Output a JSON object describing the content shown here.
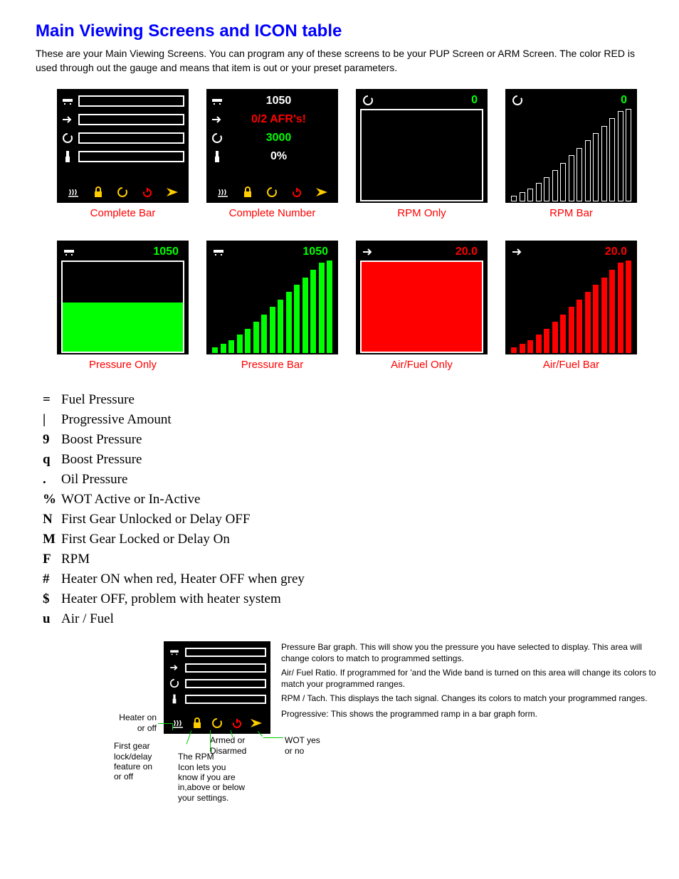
{
  "colors": {
    "title": "#0000ff",
    "caption": "#ff0000",
    "bg": "#000000",
    "white": "#ffffff",
    "green": "#00ff00",
    "red": "#ff0000",
    "yellow": "#ffcc00",
    "pointer": "#00cc00"
  },
  "title": "Main Viewing Screens and ICON table",
  "intro": "These are your Main Viewing Screens.  You can program any of these screens to be your PUP Screen or ARM Screen.  The color RED is used through out the gauge and means that item is out or your preset parameters.",
  "screens": {
    "complete_bar": {
      "caption": "Complete Bar"
    },
    "complete_number": {
      "caption": "Complete Number",
      "values": [
        {
          "text": "1050",
          "color": "#ffffff"
        },
        {
          "text": "0/2 AFR's!",
          "color": "#ff0000"
        },
        {
          "text": "3000",
          "color": "#00ff00"
        },
        {
          "text": "0%",
          "color": "#ffffff"
        }
      ]
    },
    "rpm_only": {
      "caption": "RPM Only",
      "value": "0",
      "value_color": "#00ff00"
    },
    "rpm_bar": {
      "caption": "RPM Bar",
      "value": "0",
      "value_color": "#00ff00",
      "bar_fill": "transparent",
      "bar_border": "#ffffff"
    },
    "pressure_only": {
      "caption": "Pressure Only",
      "value": "1050",
      "value_color": "#00ff00",
      "fill": "#00ff00",
      "fill_pct": 55
    },
    "pressure_bar": {
      "caption": "Pressure Bar",
      "value": "1050",
      "value_color": "#00ff00",
      "bar_fill": "#00ff00",
      "bar_border": "#00ff00"
    },
    "af_only": {
      "caption": "Air/Fuel Only",
      "value": "20.0",
      "value_color": "#ff0000",
      "fill": "#ff0000",
      "fill_pct": 100
    },
    "af_bar": {
      "caption": "Air/Fuel  Bar",
      "value": "20.0",
      "value_color": "#ff0000",
      "bar_fill": "#ff0000",
      "bar_border": "#ff0000"
    }
  },
  "bottom_icons": [
    {
      "name": "heater-icon",
      "color": "#ffffff"
    },
    {
      "name": "lock-icon",
      "color": "#ffcc00"
    },
    {
      "name": "rpm-icon",
      "color": "#ffcc00"
    },
    {
      "name": "power-icon",
      "color": "#ff0000"
    },
    {
      "name": "wot-icon",
      "color": "#ffcc00"
    }
  ],
  "bar_heights_pct": [
    6,
    10,
    14,
    20,
    26,
    34,
    42,
    50,
    58,
    66,
    74,
    82,
    90,
    98,
    100
  ],
  "icon_table": [
    {
      "sym": "=",
      "desc": "Fuel Pressure"
    },
    {
      "sym": "|",
      "desc": "Progressive Amount"
    },
    {
      "sym": "9",
      "desc": "Boost Pressure"
    },
    {
      "sym": "q",
      "desc": "Boost Pressure"
    },
    {
      "sym": ".",
      "desc": "Oil Pressure"
    },
    {
      "sym": "%",
      "desc": "WOT Active or In-Active"
    },
    {
      "sym": "N",
      "desc": "First Gear Unlocked or Delay OFF"
    },
    {
      "sym": "M",
      "desc": "First Gear Locked or Delay On"
    },
    {
      "sym": "F",
      "desc": "RPM"
    },
    {
      "sym": "#",
      "desc": "Heater ON when red, Heater OFF when grey"
    },
    {
      "sym": "$",
      "desc": "Heater OFF, problem with heater system"
    },
    {
      "sym": "u",
      "desc": "Air / Fuel"
    }
  ],
  "diagram": {
    "side": [
      "Pressure Bar graph. This will show you the pressure you have selected to display.  This area will change colors to match to programmed settings.",
      "Air/ Fuel Ratio. If programmed for 'and the Wide band is turned on this area will change its colors to match your programmed ranges.",
      "RPM / Tach. This displays the tach signal.  Changes its colors to match your programmed ranges.",
      "Progressive: This shows the programmed ramp in a bar graph form."
    ],
    "labels": {
      "heater": "Heater on\nor off",
      "firstgear": "First gear\nlock/delay\nfeature on\nor off",
      "rpm": "The RPM\nIcon lets you\nknow if you are\nin,above or below\nyour settings.",
      "armed": "Armed or\nDisarmed",
      "wot": "WOT yes\nor no"
    }
  }
}
